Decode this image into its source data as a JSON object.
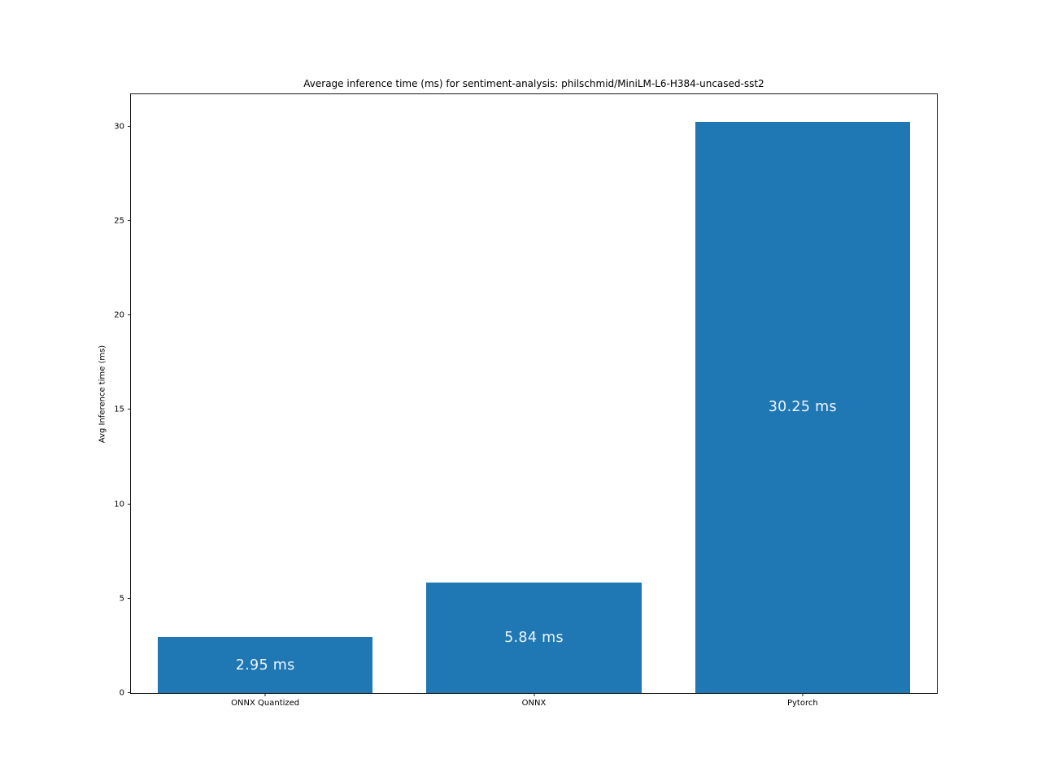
{
  "chart_data": {
    "type": "bar",
    "title": "Average inference time (ms) for sentiment-analysis: philschmid/MiniLM-L6-H384-uncased-sst2",
    "xlabel": "",
    "ylabel": "Avg Inference time (ms)",
    "categories": [
      "ONNX Quantized",
      "ONNX",
      "Pytorch"
    ],
    "values": [
      2.95,
      5.84,
      30.25
    ],
    "bar_labels": [
      "2.95 ms",
      "5.84 ms",
      "30.25 ms"
    ],
    "yticks": [
      0,
      5,
      10,
      15,
      20,
      25,
      30
    ],
    "ylim": [
      0,
      31.7
    ],
    "bar_width_fraction": 0.8,
    "grid": false,
    "legend": "none",
    "colors": {
      "bar": "#1f77b4",
      "bar_label_text": "#eef5fb",
      "axis": "#1a1a1a",
      "text": "#000000",
      "background": "#ffffff"
    }
  }
}
